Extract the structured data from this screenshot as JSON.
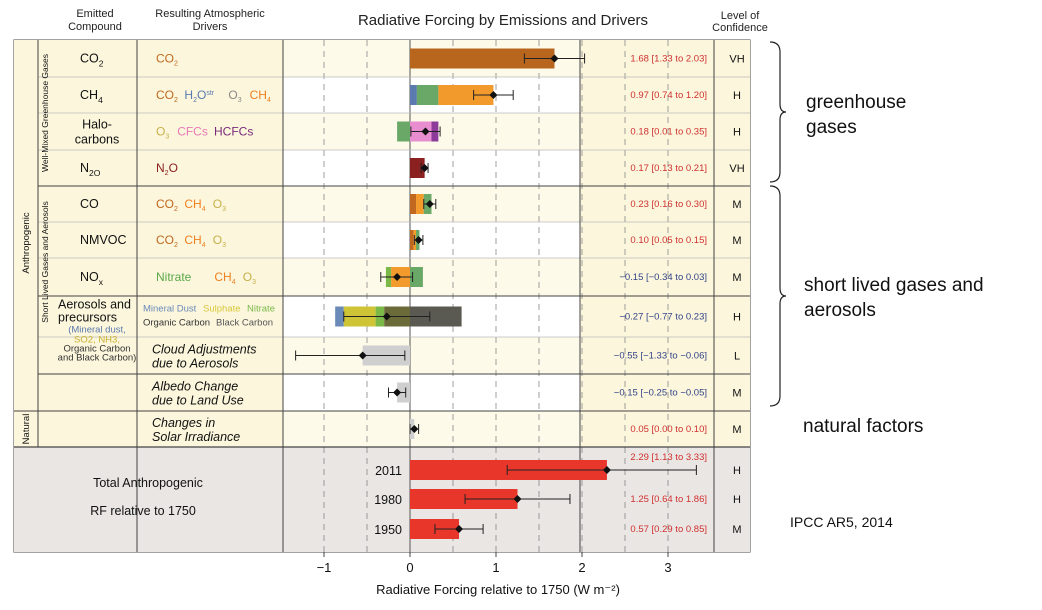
{
  "chart_data": {
    "type": "bar",
    "title": "Radiative Forcing by Emissions and Drivers",
    "xlabel": "Radiative Forcing relative to 1750 (W m⁻²)",
    "xlim": [
      -1.4,
      3.6
    ],
    "xticks": [
      "−1",
      "0",
      "1",
      "2",
      "3"
    ],
    "xtick_values": [
      -1,
      0,
      1,
      2,
      3
    ],
    "columns": {
      "emitted": "Emitted Compound",
      "drivers": "Resulting Atmospheric Drivers",
      "confidence": "Level of Confidence"
    },
    "categories": [
      "Anthropogenic",
      "Well-Mixed Greenhouse Gases",
      "Short Lived Gases and Aerosols",
      "Natural"
    ],
    "rows": [
      {
        "compound": "CO2",
        "compound_base": "CO",
        "compound_sub": "2",
        "drivers": [
          {
            "text": "CO2",
            "color": "#c0681f"
          }
        ],
        "segments": [
          {
            "from": 0,
            "to": 1.68,
            "color": "#b8651e"
          }
        ],
        "best": 1.68,
        "lo": 1.33,
        "hi": 2.03,
        "value": "1.68 [1.33 to 2.03]",
        "confidence": "VH",
        "value_color": "#d03030"
      },
      {
        "compound": "CH4",
        "compound_base": "CH",
        "compound_sub": "4",
        "drivers": [
          {
            "text": "CO2",
            "color": "#c0681f"
          },
          {
            "text": "H2Ostr",
            "color": "#5a7ab0"
          },
          {
            "text": "O3",
            "color": "#888888"
          },
          {
            "text": "CH4",
            "color": "#f08020"
          }
        ],
        "segments": [
          {
            "from": 0,
            "to": 0.08,
            "color": "#5a7ab0"
          },
          {
            "from": 0.08,
            "to": 0.33,
            "color": "#6aa868"
          },
          {
            "from": 0.33,
            "to": 0.97,
            "color": "#f39a2d"
          }
        ],
        "best": 0.97,
        "lo": 0.74,
        "hi": 1.2,
        "value": "0.97 [0.74 to 1.20]",
        "confidence": "H",
        "value_color": "#d03030"
      },
      {
        "compound": "Halo-carbons",
        "compound_base": "Halo-\ncarbons",
        "compound_sub": "",
        "drivers": [
          {
            "text": "O3",
            "color": "#c7b04a"
          },
          {
            "text": "CFCs",
            "color": "#e87ab8"
          },
          {
            "text": "HCFCs",
            "color": "#7a2a7a"
          }
        ],
        "segments": [
          {
            "from": -0.15,
            "to": 0,
            "color": "#6aa868"
          },
          {
            "from": 0,
            "to": 0.25,
            "color": "#e88ed0"
          },
          {
            "from": 0.25,
            "to": 0.33,
            "color": "#8c3b9a"
          }
        ],
        "best": 0.18,
        "lo": 0.01,
        "hi": 0.35,
        "value": "0.18 [0.01 to 0.35]",
        "confidence": "H",
        "value_color": "#d03030"
      },
      {
        "compound": "N2O",
        "compound_base": "N",
        "compound_sub": "2O",
        "drivers": [
          {
            "text": "N2O",
            "color": "#8b2020"
          }
        ],
        "segments": [
          {
            "from": 0,
            "to": 0.17,
            "color": "#8b2020"
          }
        ],
        "best": 0.17,
        "lo": 0.13,
        "hi": 0.21,
        "value": "0.17 [0.13 to 0.21]",
        "confidence": "VH",
        "value_color": "#d03030"
      },
      {
        "compound": "CO",
        "compound_base": "CO",
        "compound_sub": "",
        "drivers": [
          {
            "text": "CO2",
            "color": "#c0681f"
          },
          {
            "text": "CH4",
            "color": "#f08020"
          },
          {
            "text": "O3",
            "color": "#c7b04a"
          }
        ],
        "segments": [
          {
            "from": 0,
            "to": 0.07,
            "color": "#c0681f"
          },
          {
            "from": 0.07,
            "to": 0.16,
            "color": "#f39a2d"
          },
          {
            "from": 0.16,
            "to": 0.25,
            "color": "#6aa868"
          }
        ],
        "best": 0.23,
        "lo": 0.16,
        "hi": 0.3,
        "value": "0.23 [0.16 to 0.30]",
        "confidence": "M",
        "value_color": "#d03030"
      },
      {
        "compound": "NMVOC",
        "compound_base": "NMVOC",
        "compound_sub": "",
        "drivers": [
          {
            "text": "CO2",
            "color": "#c0681f"
          },
          {
            "text": "CH4",
            "color": "#f08020"
          },
          {
            "text": "O3",
            "color": "#c7b04a"
          }
        ],
        "segments": [
          {
            "from": 0,
            "to": 0.04,
            "color": "#c0681f"
          },
          {
            "from": 0.04,
            "to": 0.07,
            "color": "#f39a2d"
          },
          {
            "from": 0.07,
            "to": 0.11,
            "color": "#6aa868"
          }
        ],
        "best": 0.1,
        "lo": 0.05,
        "hi": 0.15,
        "value": "0.10 [0.05 to 0.15]",
        "confidence": "M",
        "value_color": "#d03030"
      },
      {
        "compound": "NOx",
        "compound_base": "NO",
        "compound_sub": "x",
        "drivers": [
          {
            "text": "Nitrate",
            "color": "#5aa84a"
          },
          {
            "text": "CH4",
            "color": "#f08020"
          },
          {
            "text": "O3",
            "color": "#c7b04a"
          }
        ],
        "segments": [
          {
            "from": -0.28,
            "to": -0.22,
            "color": "#7ab848"
          },
          {
            "from": -0.22,
            "to": 0,
            "color": "#f39a2d"
          },
          {
            "from": 0,
            "to": 0.15,
            "color": "#6aa868"
          }
        ],
        "best": -0.15,
        "lo": -0.34,
        "hi": 0.03,
        "value": "−0.15 [−0.34 to 0.03]",
        "confidence": "M",
        "value_color": "#334488"
      },
      {
        "compound": "Aerosols and precursors",
        "compound_base": "Aerosols and\nprecursors",
        "compound_sub": "",
        "drivers": [
          {
            "text": "Mineral Dust",
            "color": "#6a8ab8"
          },
          {
            "text": "Sulphate",
            "color": "#d8c83a"
          },
          {
            "text": "Nitrate",
            "color": "#7ab848"
          },
          {
            "text": "Organic Carbon",
            "color": "#333333"
          },
          {
            "text": "Black Carbon",
            "color": "#555555"
          }
        ],
        "sub_drivers": [
          "(Mineral dust,",
          "SO2, NH3,",
          "Organic Carbon",
          "and Black Carbon)"
        ],
        "segments": [
          {
            "from": -0.87,
            "to": -0.77,
            "color": "#6a8ab8"
          },
          {
            "from": -0.77,
            "to": -0.4,
            "color": "#cfc436"
          },
          {
            "from": -0.4,
            "to": -0.3,
            "color": "#7ab848"
          },
          {
            "from": -0.3,
            "to": 0,
            "color": "#6b6b3a"
          },
          {
            "from": 0,
            "to": 0.6,
            "color": "#5a5a52"
          }
        ],
        "best": -0.27,
        "lo": -0.77,
        "hi": 0.23,
        "value": "−0.27 [−0.77 to 0.23]",
        "confidence": "H",
        "value_color": "#334488"
      },
      {
        "compound": "Cloud Adjustments due to Aerosols",
        "compound_base": "Cloud Adjustments\ndue to Aerosols",
        "compound_sub": "",
        "drivers": [],
        "segments": [
          {
            "from": -0.55,
            "to": 0,
            "color": "#cfcfcf"
          }
        ],
        "best": -0.55,
        "lo": -1.33,
        "hi": -0.06,
        "value": "−0.55 [−1.33 to −0.06]",
        "confidence": "L",
        "value_color": "#334488"
      },
      {
        "compound": "Albedo Change due to Land Use",
        "compound_base": "Albedo Change\ndue to Land Use",
        "compound_sub": "",
        "drivers": [],
        "segments": [
          {
            "from": -0.15,
            "to": 0,
            "color": "#cfcfcf"
          }
        ],
        "best": -0.15,
        "lo": -0.25,
        "hi": -0.05,
        "value": "−0.15 [−0.25 to −0.05]",
        "confidence": "M",
        "value_color": "#334488"
      },
      {
        "compound": "Changes in Solar Irradiance",
        "compound_base": "Changes in\nSolar Irradiance",
        "compound_sub": "",
        "drivers": [],
        "segments": [
          {
            "from": 0,
            "to": 0.05,
            "color": "#cfcfcf"
          }
        ],
        "best": 0.05,
        "lo": 0.0,
        "hi": 0.1,
        "value": "0.05 [0.00 to 0.10]",
        "confidence": "M",
        "value_color": "#d03030"
      }
    ],
    "totals": {
      "label": "Total Anthropogenic\nRF relative to 1750",
      "series": [
        {
          "year": "2011",
          "best": 2.29,
          "lo": 1.13,
          "hi": 3.33,
          "value": "2.29 [1.13 to 3.33]",
          "confidence": "H"
        },
        {
          "year": "1980",
          "best": 1.25,
          "lo": 0.64,
          "hi": 1.86,
          "value": "1.25 [0.64 to 1.86]",
          "confidence": "H"
        },
        {
          "year": "1950",
          "best": 0.57,
          "lo": 0.29,
          "hi": 0.85,
          "value": "0.57 [0.29 to 0.85]",
          "confidence": "M"
        }
      ],
      "color": "#e8372a"
    }
  },
  "annotations": {
    "greenhouse": "greenhouse\ngases",
    "short_lived": "short lived gases and\naerosols",
    "natural": "natural factors",
    "source": "IPCC AR5, 2014"
  }
}
